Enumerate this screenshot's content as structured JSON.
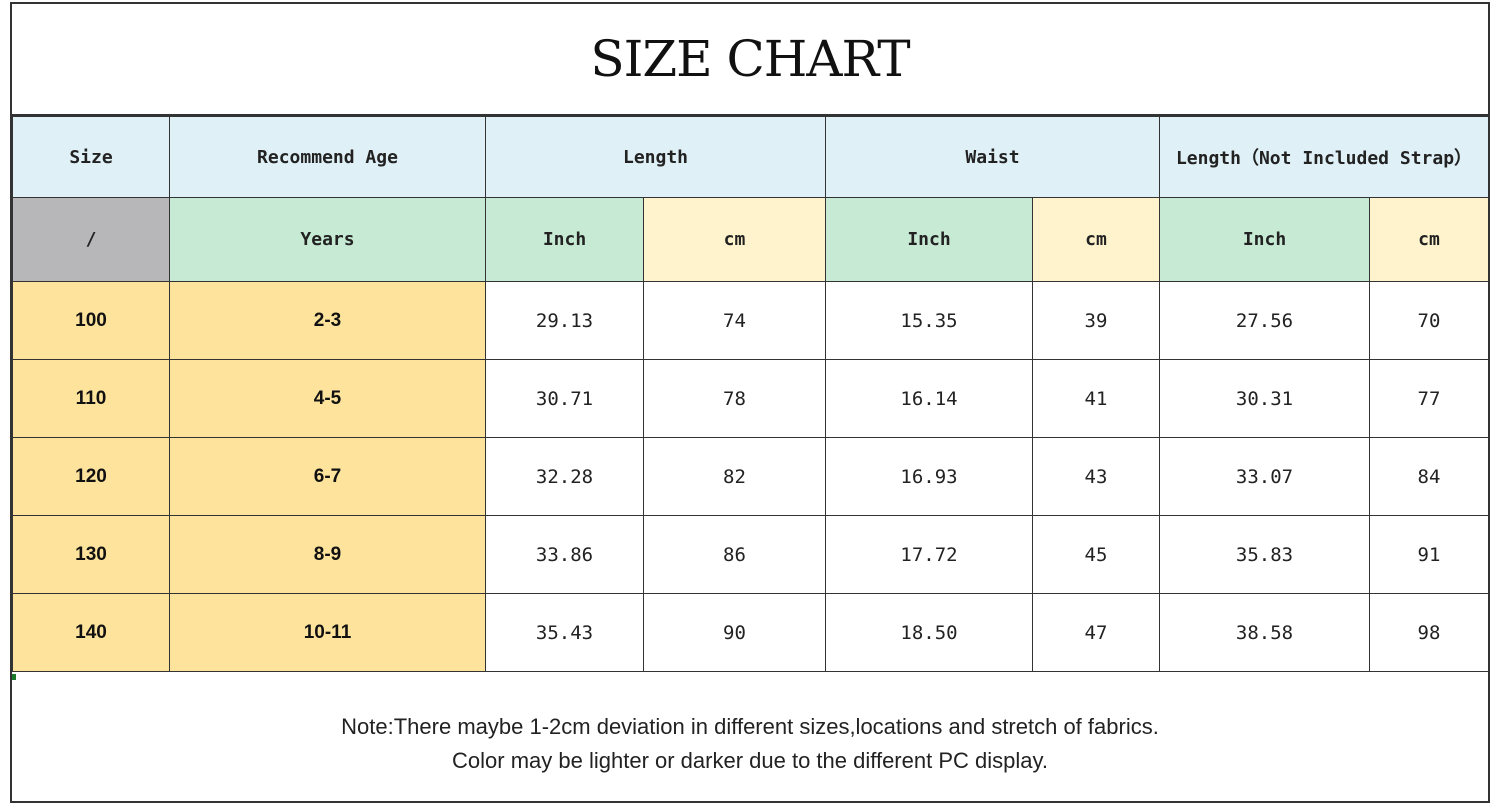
{
  "title": "SIZE CHART",
  "header": {
    "size": "Size",
    "age": "Recommend Age",
    "length": "Length",
    "waist": "Waist",
    "length_no_strap": "Length（Not Included Strap）"
  },
  "subheader": {
    "size": "/",
    "age": "Years",
    "length_inch": "Inch",
    "length_cm": "cm",
    "waist_inch": "Inch",
    "waist_cm": "cm",
    "strap_inch": "Inch",
    "strap_cm": "cm"
  },
  "rows": [
    [
      "100",
      "2-3",
      "29.13",
      "74",
      "15.35",
      "39",
      "27.56",
      "70"
    ],
    [
      "110",
      "4-5",
      "30.71",
      "78",
      "16.14",
      "41",
      "30.31",
      "77"
    ],
    [
      "120",
      "6-7",
      "32.28",
      "82",
      "16.93",
      "43",
      "33.07",
      "84"
    ],
    [
      "130",
      "8-9",
      "33.86",
      "86",
      "17.72",
      "45",
      "35.83",
      "91"
    ],
    [
      "140",
      "10-11",
      "35.43",
      "90",
      "18.50",
      "47",
      "38.58",
      "98"
    ]
  ],
  "notes": [
    "Note:There maybe 1-2cm deviation in different sizes,locations and stretch of fabrics.",
    "Color may be lighter or darker due to the different PC display."
  ],
  "colors": {
    "header_bg": "#dff0f6",
    "size_key_bg": "#fde39b",
    "inch_bg": "#c6ead3",
    "cm_bg": "#fff3cd",
    "slash_bg": "#b7b7b9"
  }
}
